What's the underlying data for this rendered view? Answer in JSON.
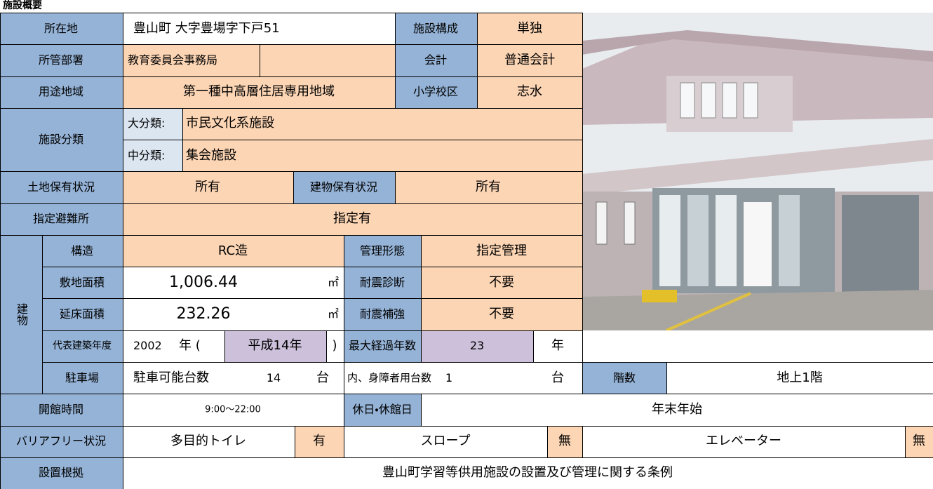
{
  "header": {
    "title": "施設概要"
  },
  "table": {
    "cells": [
      "所在地",
      "豊山町 大字豊場字下戸51",
      "施設構成",
      "単独",
      "所管部署",
      "教育委員会事務局",
      "会計",
      "普通会計",
      "用途地域",
      "第一種中高層住居専用地域",
      "小学校区",
      "志水",
      "施設分類",
      "大分類:",
      "市民文化系施設",
      "中分類:",
      "集会施設",
      "土地保有状況",
      "所有",
      "建物保有状況",
      "所有",
      "指定避難所",
      "指定有",
      "建物",
      "構造",
      "RC造",
      "管理形態",
      "指定管理",
      "敷地面積",
      "1,006.44",
      "㎡",
      "耐震診断",
      "不要",
      "延床面積",
      "232.26",
      "㎡",
      "耐震補強",
      "不要",
      "代表建築年度",
      "2002",
      "年 (",
      "平成14年",
      ")",
      "最大経過年数",
      "23",
      "年",
      "駐車場",
      "駐車可能台数",
      "14",
      "台",
      "内、身障者用台数",
      "1",
      "台",
      "階数",
      "地上1階",
      "開館時間",
      "9:00〜22:00",
      "休日・休館日",
      "年末年始",
      "バリアフリー状況",
      "多目的トイレ",
      "有",
      "スロープ",
      "無",
      "エレベーター",
      "無",
      "設置根拠",
      "豊山町学習等供用施設の設置及び管理に関する条例"
    ]
  }
}
